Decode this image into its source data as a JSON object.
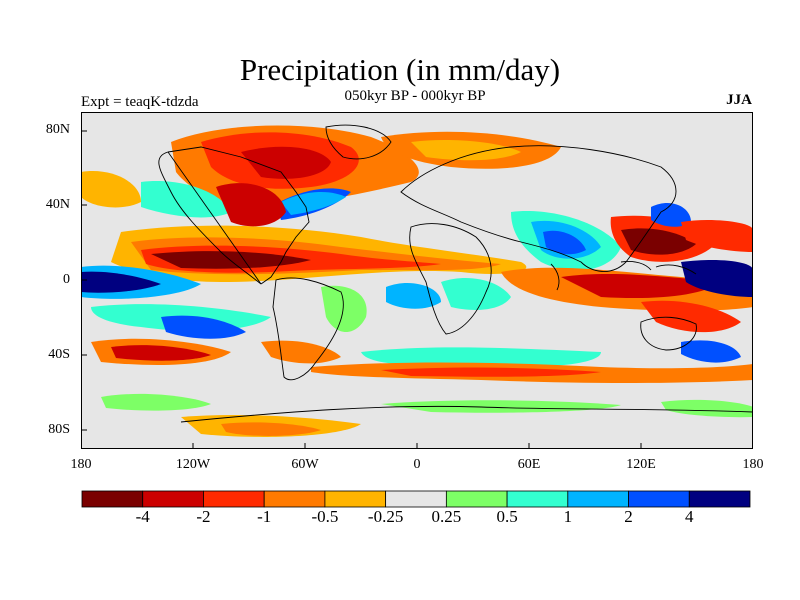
{
  "header": {
    "title": "Precipitation (in mm/day)",
    "subtitle": "050kyr BP - 000kyr BP",
    "experiment": "Expt = teaqK-tdzda",
    "season": "JJA"
  },
  "map": {
    "lat_ticks": [
      "80N",
      "40N",
      "0",
      "40S",
      "80S"
    ],
    "lon_ticks": [
      "180",
      "120W",
      "60W",
      "0",
      "60E",
      "120E",
      "180"
    ]
  },
  "colorbar": {
    "labels": [
      "-4",
      "-2",
      "-1",
      "-0.5",
      "-0.25",
      "0.25",
      "0.5",
      "1",
      "2",
      "4"
    ],
    "colors": [
      "#7a0000",
      "#cc0000",
      "#ff2a00",
      "#ff7a00",
      "#ffb400",
      "#e6e6e6",
      "#7dff66",
      "#33ffd0",
      "#00b4ff",
      "#0050ff",
      "#000080"
    ]
  }
}
